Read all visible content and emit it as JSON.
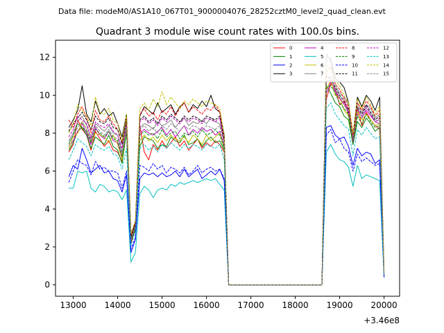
{
  "figure": {
    "header": "Data file: modeM0/AS1A10_067T01_9000004076_28252cztM0_level2_quad_clean.evt",
    "title": "Quadrant 3 module wise count rates with 100.0s bins.",
    "x_offset_label": "+3.46e8"
  },
  "chart_data": {
    "type": "line",
    "title": "Quadrant 3 module wise count rates with 100.0s bins.",
    "subtitle": "Data file: modeM0/AS1A10_067T01_9000004076_28252cztM0_level2_quad_clean.evt",
    "xlabel": "",
    "ylabel": "",
    "x_offset": "+3.46e8",
    "xlim": [
      12600,
      20350
    ],
    "ylim": [
      -0.6,
      12.9
    ],
    "xticks": [
      13000,
      14000,
      15000,
      16000,
      17000,
      18000,
      19000,
      20000
    ],
    "yticks": [
      0,
      2,
      4,
      6,
      8,
      10,
      12
    ],
    "grid": false,
    "legend": {
      "placement": "top-right",
      "columns": 4
    },
    "x": [
      12900,
      13000,
      13100,
      13200,
      13300,
      13400,
      13500,
      13600,
      13700,
      13800,
      13900,
      14000,
      14100,
      14200,
      14300,
      14400,
      14500,
      14600,
      14700,
      14800,
      14900,
      15000,
      15100,
      15200,
      15300,
      15400,
      15500,
      15600,
      15700,
      15800,
      15900,
      16000,
      16100,
      16200,
      16300,
      16400,
      16500,
      18600,
      18700,
      18800,
      18900,
      19000,
      19100,
      19200,
      19300,
      19400,
      19500,
      19600,
      19700,
      19800,
      19900,
      20000
    ],
    "series": [
      {
        "name": "0",
        "color": "#ff0000",
        "style": "solid",
        "values": [
          7.0,
          7.4,
          8.7,
          8.2,
          7.9,
          7.1,
          8.1,
          7.7,
          7.3,
          7.6,
          7.1,
          7.0,
          6.5,
          8.3,
          2.2,
          3.0,
          8.4,
          7.0,
          6.6,
          7.4,
          7.1,
          7.6,
          7.2,
          7.5,
          7.8,
          7.3,
          7.6,
          7.1,
          7.4,
          7.7,
          7.2,
          7.5,
          7.3,
          7.6,
          7.4,
          7.0,
          0.0,
          0.0,
          9.8,
          10.6,
          10.3,
          9.5,
          9.7,
          9.0,
          7.5,
          9.3,
          8.4,
          9.1,
          8.7,
          8.4,
          8.2,
          0.5
        ]
      },
      {
        "name": "1",
        "color": "#008000",
        "style": "solid",
        "values": [
          7.1,
          7.5,
          8.1,
          8.3,
          7.9,
          7.2,
          7.8,
          7.6,
          7.4,
          7.9,
          7.3,
          7.1,
          6.4,
          8.1,
          2.3,
          2.9,
          7.3,
          7.8,
          7.7,
          7.6,
          7.2,
          7.4,
          7.3,
          7.8,
          7.6,
          7.5,
          7.9,
          7.4,
          7.5,
          7.7,
          7.3,
          7.6,
          7.8,
          7.5,
          7.6,
          7.1,
          0.0,
          0.0,
          10.5,
          10.1,
          9.6,
          9.4,
          8.9,
          8.7,
          7.4,
          8.6,
          8.3,
          8.8,
          8.5,
          8.1,
          8.3,
          0.5
        ]
      },
      {
        "name": "2",
        "color": "#0000ff",
        "style": "solid",
        "values": [
          5.7,
          6.3,
          6.1,
          7.2,
          6.6,
          5.9,
          6.1,
          6.3,
          5.9,
          6.0,
          5.6,
          5.5,
          4.9,
          5.8,
          1.7,
          2.4,
          5.6,
          5.9,
          5.8,
          5.9,
          5.7,
          5.9,
          5.7,
          5.8,
          6.0,
          5.7,
          6.1,
          5.7,
          5.9,
          6.1,
          5.6,
          5.8,
          6.0,
          5.8,
          6.1,
          5.5,
          0.0,
          0.0,
          8.3,
          8.4,
          7.9,
          7.7,
          7.8,
          7.3,
          6.3,
          7.2,
          6.8,
          7.0,
          6.9,
          6.4,
          6.6,
          0.4
        ]
      },
      {
        "name": "3",
        "color": "#000000",
        "style": "solid",
        "values": [
          8.3,
          8.7,
          9.2,
          10.5,
          9.0,
          8.6,
          9.7,
          9.0,
          9.3,
          8.9,
          9.1,
          8.5,
          7.8,
          9.0,
          2.7,
          3.3,
          8.9,
          9.4,
          9.2,
          9.0,
          9.6,
          9.1,
          9.3,
          9.5,
          9.0,
          9.4,
          9.6,
          9.1,
          9.5,
          9.3,
          9.7,
          9.4,
          10.0,
          9.3,
          9.1,
          7.9,
          0.0,
          0.0,
          12.1,
          11.9,
          10.9,
          10.7,
          10.4,
          9.6,
          7.9,
          9.9,
          9.4,
          10.0,
          9.7,
          9.2,
          9.9,
          0.7
        ]
      },
      {
        "name": "4",
        "color": "#bf00bf",
        "style": "solid",
        "values": [
          7.3,
          7.6,
          8.1,
          8.5,
          8.0,
          7.4,
          8.3,
          7.9,
          7.7,
          8.1,
          7.6,
          7.5,
          6.7,
          8.2,
          2.3,
          3.0,
          8.0,
          8.2,
          8.0,
          7.9,
          8.1,
          8.3,
          7.9,
          8.2,
          7.8,
          8.1,
          8.4,
          7.9,
          8.2,
          8.0,
          8.3,
          8.1,
          8.2,
          7.9,
          8.1,
          7.3,
          0.0,
          0.0,
          10.1,
          10.7,
          10.2,
          9.9,
          9.5,
          9.1,
          7.5,
          9.0,
          8.8,
          9.2,
          8.9,
          8.6,
          8.5,
          0.5
        ]
      },
      {
        "name": "5",
        "color": "#00bfbf",
        "style": "solid",
        "values": [
          5.1,
          5.1,
          6.0,
          5.9,
          6.0,
          5.1,
          4.9,
          5.3,
          5.2,
          4.9,
          5.0,
          4.9,
          4.5,
          5.0,
          1.2,
          1.7,
          4.8,
          5.2,
          5.0,
          4.6,
          5.0,
          5.1,
          5.0,
          5.3,
          5.2,
          5.4,
          5.3,
          5.4,
          5.5,
          5.4,
          5.5,
          5.6,
          5.5,
          5.6,
          5.3,
          5.0,
          0.0,
          0.0,
          7.0,
          7.4,
          6.9,
          6.6,
          6.5,
          6.2,
          5.2,
          6.3,
          5.6,
          5.8,
          5.7,
          5.6,
          5.5,
          0.4
        ]
      },
      {
        "name": "6",
        "color": "#bfbf00",
        "style": "solid",
        "values": [
          7.2,
          7.8,
          8.0,
          8.6,
          8.2,
          7.6,
          8.0,
          7.9,
          7.8,
          7.5,
          7.9,
          7.4,
          6.6,
          8.4,
          2.4,
          3.1,
          7.6,
          7.9,
          7.6,
          7.8,
          7.5,
          7.9,
          7.6,
          7.9,
          7.7,
          7.6,
          7.8,
          7.5,
          7.9,
          7.7,
          7.4,
          7.9,
          7.6,
          7.8,
          8.0,
          7.2,
          0.0,
          0.0,
          10.3,
          10.8,
          10.0,
          9.9,
          9.2,
          8.9,
          7.6,
          9.1,
          8.7,
          9.0,
          8.7,
          8.4,
          8.5,
          0.5
        ]
      },
      {
        "name": "7",
        "color": "#808080",
        "style": "solid",
        "values": [
          7.6,
          8.0,
          8.6,
          8.9,
          8.4,
          7.8,
          8.5,
          8.3,
          8.1,
          8.4,
          8.0,
          7.9,
          7.0,
          8.6,
          2.5,
          3.2,
          8.3,
          8.5,
          8.4,
          8.2,
          8.6,
          8.4,
          8.5,
          8.7,
          8.3,
          8.6,
          8.8,
          8.4,
          8.6,
          8.5,
          8.7,
          8.5,
          8.8,
          8.6,
          8.5,
          7.6,
          0.0,
          0.0,
          12.2,
          11.8,
          10.5,
          10.1,
          9.9,
          9.5,
          7.8,
          9.6,
          9.1,
          9.5,
          9.3,
          8.8,
          9.0,
          0.6
        ]
      },
      {
        "name": "8",
        "color": "#ff0000",
        "style": "dashed",
        "values": [
          8.7,
          8.3,
          9.0,
          9.4,
          8.8,
          8.0,
          9.2,
          8.7,
          8.6,
          8.9,
          8.5,
          8.2,
          7.5,
          8.8,
          2.6,
          3.3,
          9.0,
          9.3,
          8.9,
          9.1,
          8.7,
          9.2,
          9.0,
          9.4,
          8.9,
          9.3,
          9.6,
          9.1,
          9.4,
          9.2,
          9.0,
          9.3,
          9.2,
          9.5,
          9.1,
          7.7,
          0.0,
          0.0,
          11.2,
          11.5,
          10.6,
          10.3,
          9.8,
          9.4,
          7.9,
          9.6,
          9.2,
          9.7,
          9.4,
          8.9,
          9.2,
          0.6
        ]
      },
      {
        "name": "9",
        "color": "#008000",
        "style": "dashed",
        "values": [
          7.4,
          7.9,
          8.5,
          8.3,
          8.1,
          7.5,
          8.2,
          8.0,
          7.8,
          8.1,
          7.7,
          7.6,
          6.8,
          8.0,
          2.3,
          3.0,
          7.9,
          8.1,
          7.9,
          8.0,
          7.7,
          8.2,
          7.8,
          8.0,
          8.1,
          7.7,
          8.0,
          7.9,
          8.1,
          7.8,
          8.2,
          7.9,
          8.0,
          8.2,
          7.9,
          7.2,
          0.0,
          0.0,
          10.4,
          10.5,
          10.1,
          9.6,
          9.3,
          9.0,
          7.4,
          8.9,
          8.5,
          9.0,
          8.6,
          8.3,
          8.4,
          0.5
        ]
      },
      {
        "name": "10",
        "color": "#0000ff",
        "style": "dashed",
        "values": [
          5.4,
          6.0,
          6.6,
          6.4,
          6.3,
          5.8,
          6.5,
          6.1,
          6.2,
          6.0,
          6.0,
          5.9,
          5.1,
          6.0,
          1.9,
          2.5,
          6.3,
          6.2,
          6.0,
          6.4,
          6.1,
          6.3,
          5.9,
          6.2,
          6.1,
          5.9,
          6.2,
          5.8,
          6.0,
          6.3,
          5.9,
          6.1,
          6.2,
          6.0,
          6.1,
          5.6,
          0.0,
          0.0,
          7.9,
          8.2,
          7.5,
          7.7,
          7.2,
          7.0,
          6.0,
          6.9,
          6.5,
          6.7,
          6.5,
          6.3,
          6.4,
          0.4
        ]
      },
      {
        "name": "11",
        "color": "#000000",
        "style": "dashed",
        "values": [
          8.1,
          8.5,
          8.8,
          9.1,
          8.7,
          8.2,
          8.9,
          8.6,
          8.5,
          8.8,
          8.3,
          8.2,
          7.4,
          8.7,
          2.5,
          3.2,
          8.7,
          8.9,
          8.6,
          8.8,
          8.5,
          8.9,
          8.7,
          9.0,
          8.8,
          8.6,
          8.9,
          8.7,
          8.9,
          8.8,
          8.6,
          8.9,
          8.8,
          8.7,
          8.9,
          7.6,
          0.0,
          0.0,
          11.0,
          10.9,
          10.4,
          10.0,
          9.7,
          9.2,
          7.7,
          9.4,
          9.0,
          9.5,
          9.1,
          8.7,
          8.9,
          0.6
        ]
      },
      {
        "name": "12",
        "color": "#bf00bf",
        "style": "dashed",
        "values": [
          7.8,
          8.2,
          8.9,
          8.7,
          8.5,
          7.7,
          8.6,
          8.4,
          8.3,
          8.5,
          8.1,
          7.9,
          7.2,
          8.4,
          2.4,
          3.1,
          8.6,
          8.8,
          8.5,
          8.7,
          8.4,
          8.8,
          8.6,
          8.9,
          8.7,
          8.5,
          8.8,
          8.6,
          8.8,
          8.7,
          8.5,
          8.8,
          8.7,
          8.6,
          8.8,
          7.5,
          0.0,
          0.0,
          10.9,
          11.0,
          10.2,
          9.8,
          9.6,
          9.3,
          7.6,
          9.3,
          8.9,
          9.4,
          9.0,
          8.6,
          8.8,
          0.6
        ]
      },
      {
        "name": "13",
        "color": "#00bfbf",
        "style": "dashed",
        "values": [
          6.6,
          7.1,
          7.7,
          7.5,
          7.3,
          6.8,
          7.4,
          7.2,
          7.1,
          7.3,
          6.9,
          6.8,
          6.1,
          7.2,
          2.1,
          2.8,
          7.2,
          7.4,
          7.1,
          7.3,
          7.0,
          7.4,
          7.2,
          7.5,
          7.3,
          7.1,
          7.4,
          7.2,
          7.4,
          7.3,
          7.1,
          7.4,
          7.3,
          7.2,
          7.4,
          6.6,
          0.0,
          0.0,
          9.3,
          9.6,
          9.0,
          8.7,
          8.4,
          8.2,
          6.8,
          8.2,
          7.9,
          8.3,
          8.0,
          7.7,
          7.8,
          0.5
        ]
      },
      {
        "name": "14",
        "color": "#bfbf00",
        "style": "dashed",
        "values": [
          8.0,
          8.5,
          9.5,
          9.2,
          8.9,
          8.4,
          9.9,
          9.1,
          9.0,
          9.3,
          8.7,
          8.5,
          7.6,
          9.0,
          2.7,
          3.4,
          9.3,
          9.6,
          9.2,
          9.8,
          9.4,
          10.2,
          9.5,
          9.9,
          9.6,
          9.3,
          9.7,
          9.5,
          9.8,
          9.6,
          9.4,
          9.7,
          9.6,
          9.5,
          9.3,
          7.8,
          0.0,
          0.0,
          11.6,
          11.4,
          10.8,
          10.5,
          10.0,
          9.6,
          8.0,
          9.8,
          9.3,
          9.9,
          9.5,
          9.0,
          9.4,
          0.7
        ]
      },
      {
        "name": "15",
        "color": "#808080",
        "style": "dashed",
        "values": [
          7.5,
          7.9,
          8.3,
          8.6,
          8.2,
          7.6,
          8.4,
          8.1,
          7.9,
          8.2,
          7.8,
          7.7,
          6.9,
          8.3,
          2.4,
          3.1,
          8.2,
          8.4,
          8.1,
          8.3,
          8.0,
          8.4,
          8.2,
          8.5,
          8.3,
          8.1,
          8.4,
          8.2,
          8.4,
          8.3,
          8.1,
          8.4,
          8.3,
          8.2,
          8.4,
          7.4,
          0.0,
          0.0,
          10.7,
          10.9,
          10.3,
          9.9,
          9.5,
          9.2,
          7.7,
          9.3,
          8.8,
          9.3,
          9.0,
          8.6,
          8.7,
          0.6
        ]
      }
    ]
  }
}
